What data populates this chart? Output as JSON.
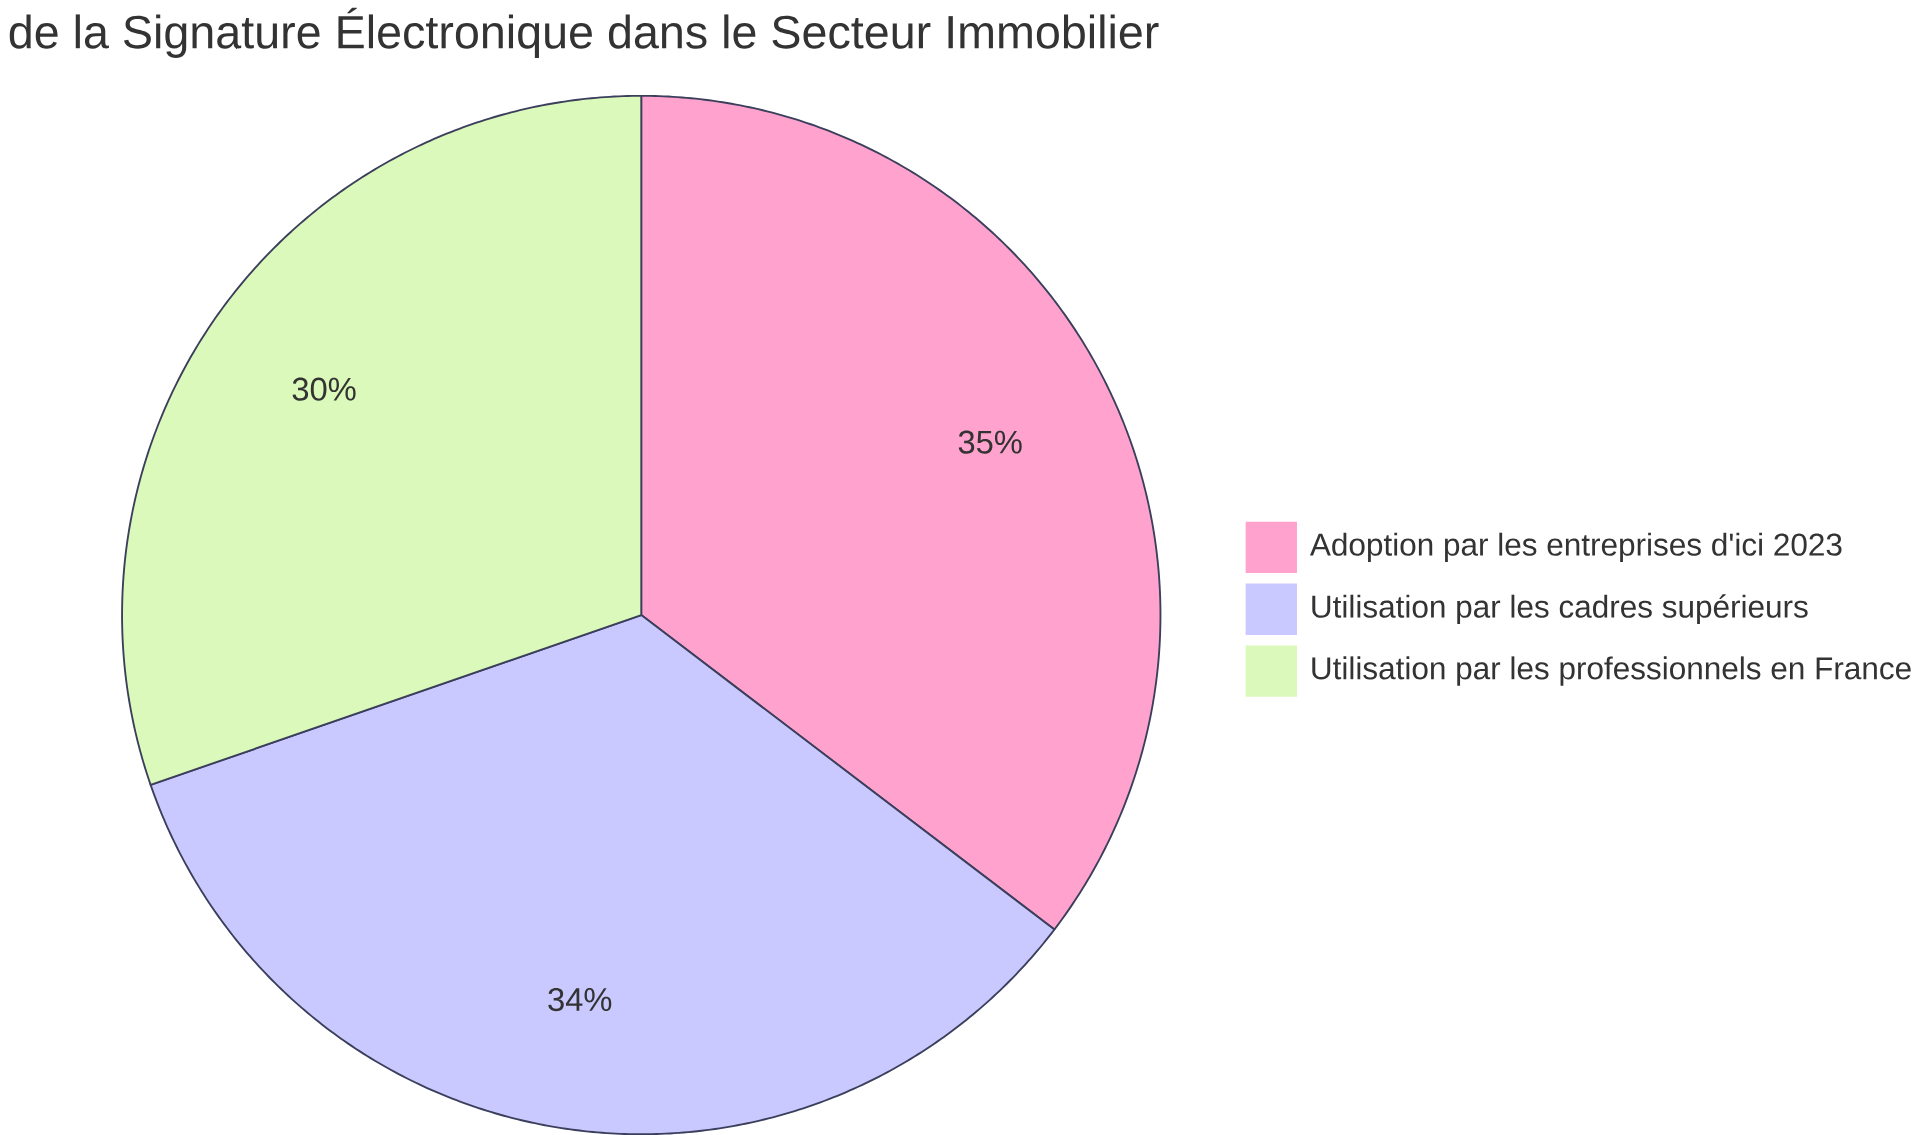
{
  "chart_data": {
    "type": "pie",
    "title": "de la Signature Électronique dans le Secteur Immobilier",
    "categories": [
      "Adoption par les entreprises d'ici 2023",
      "Utilisation par les cadres supérieurs",
      "Utilisation par les professionnels en France"
    ],
    "values": [
      35,
      34,
      30
    ],
    "value_labels": [
      "35%",
      "34%",
      "30%"
    ],
    "colors": [
      "#ffa3ce",
      "#c9c9ff",
      "#daf9ba"
    ],
    "legend": "right"
  }
}
